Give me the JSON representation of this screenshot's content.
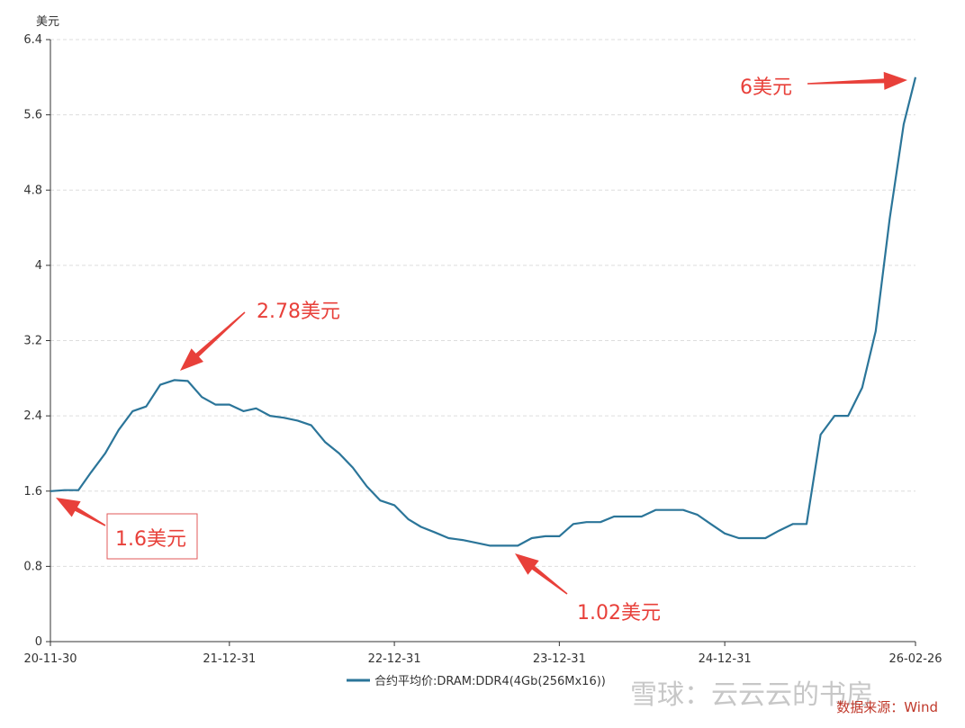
{
  "chart_data": {
    "type": "line",
    "unit_label": "美元",
    "y_ticks": [
      "0",
      "0.8",
      "1.6",
      "2.4",
      "3.2",
      "4",
      "4.8",
      "5.6",
      "6.4"
    ],
    "ylim": [
      0,
      6.4
    ],
    "x_tick_labels": [
      "20-11-30",
      "21-12-31",
      "22-12-31",
      "23-12-31",
      "24-12-31",
      "26-02-26"
    ],
    "x_tick_dates": [
      "2020-11-30",
      "2021-12-31",
      "2022-12-31",
      "2023-12-31",
      "2024-12-31",
      "2026-02-26"
    ],
    "grid": true,
    "series": [
      {
        "name": "合约平均价:DRAM:DDR4(4Gb(256Mx16))",
        "color": "#2b7599",
        "points": [
          [
            "2020-11-30",
            1.6
          ],
          [
            "2020-12-31",
            1.61
          ],
          [
            "2021-01-31",
            1.61
          ],
          [
            "2021-02-28",
            1.8
          ],
          [
            "2021-03-31",
            2.0
          ],
          [
            "2021-04-30",
            2.25
          ],
          [
            "2021-05-31",
            2.45
          ],
          [
            "2021-06-30",
            2.5
          ],
          [
            "2021-07-31",
            2.73
          ],
          [
            "2021-08-31",
            2.78
          ],
          [
            "2021-09-30",
            2.77
          ],
          [
            "2021-10-31",
            2.6
          ],
          [
            "2021-11-30",
            2.52
          ],
          [
            "2021-12-31",
            2.52
          ],
          [
            "2022-01-31",
            2.45
          ],
          [
            "2022-02-28",
            2.48
          ],
          [
            "2022-03-31",
            2.4
          ],
          [
            "2022-04-30",
            2.38
          ],
          [
            "2022-05-31",
            2.35
          ],
          [
            "2022-06-30",
            2.3
          ],
          [
            "2022-07-31",
            2.12
          ],
          [
            "2022-08-31",
            2.0
          ],
          [
            "2022-09-30",
            1.85
          ],
          [
            "2022-10-31",
            1.65
          ],
          [
            "2022-11-30",
            1.5
          ],
          [
            "2022-12-31",
            1.45
          ],
          [
            "2023-01-31",
            1.3
          ],
          [
            "2023-02-28",
            1.22
          ],
          [
            "2023-03-31",
            1.16
          ],
          [
            "2023-04-30",
            1.1
          ],
          [
            "2023-05-31",
            1.08
          ],
          [
            "2023-06-30",
            1.05
          ],
          [
            "2023-07-31",
            1.02
          ],
          [
            "2023-08-31",
            1.02
          ],
          [
            "2023-09-30",
            1.02
          ],
          [
            "2023-10-31",
            1.1
          ],
          [
            "2023-11-30",
            1.12
          ],
          [
            "2023-12-31",
            1.12
          ],
          [
            "2024-01-31",
            1.25
          ],
          [
            "2024-02-29",
            1.27
          ],
          [
            "2024-03-31",
            1.27
          ],
          [
            "2024-04-30",
            1.33
          ],
          [
            "2024-05-31",
            1.33
          ],
          [
            "2024-06-30",
            1.33
          ],
          [
            "2024-07-31",
            1.4
          ],
          [
            "2024-08-31",
            1.4
          ],
          [
            "2024-09-30",
            1.4
          ],
          [
            "2024-10-31",
            1.35
          ],
          [
            "2024-11-30",
            1.25
          ],
          [
            "2024-12-31",
            1.15
          ],
          [
            "2025-01-31",
            1.1
          ],
          [
            "2025-02-28",
            1.1
          ],
          [
            "2025-03-31",
            1.1
          ],
          [
            "2025-04-30",
            1.18
          ],
          [
            "2025-05-31",
            1.25
          ],
          [
            "2025-06-30",
            1.25
          ],
          [
            "2025-07-31",
            2.2
          ],
          [
            "2025-08-31",
            2.4
          ],
          [
            "2025-09-30",
            2.4
          ],
          [
            "2025-10-31",
            2.7
          ],
          [
            "2025-11-30",
            3.3
          ],
          [
            "2025-12-31",
            4.5
          ],
          [
            "2026-01-31",
            5.5
          ],
          [
            "2026-02-26",
            6.0
          ]
        ]
      }
    ],
    "legend_position": "bottom-center",
    "annotations": [
      {
        "text": "1.6美元",
        "boxed": true
      },
      {
        "text": "2.78美元",
        "boxed": false
      },
      {
        "text": "1.02美元",
        "boxed": false
      },
      {
        "text": "6美元",
        "boxed": false
      }
    ],
    "source": "数据来源：Wind",
    "watermark": "雪球：云云云的书房",
    "accent_color": "#e8403a"
  }
}
